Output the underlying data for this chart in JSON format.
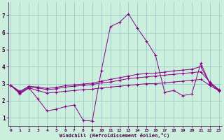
{
  "xlabel": "Windchill (Refroidissement éolien,°C)",
  "background_color": "#cceedd",
  "line_color": "#880088",
  "grid_color": "#99cccc",
  "x_ticks": [
    0,
    1,
    2,
    3,
    4,
    5,
    6,
    7,
    8,
    9,
    10,
    11,
    12,
    13,
    14,
    15,
    16,
    17,
    18,
    19,
    20,
    21,
    22,
    23
  ],
  "y_ticks": [
    1,
    2,
    3,
    4,
    5,
    6,
    7
  ],
  "xlim": [
    -0.3,
    23.3
  ],
  "ylim": [
    0.5,
    7.8
  ],
  "series": [
    {
      "x": [
        0,
        1,
        2,
        3,
        4,
        5,
        6,
        7,
        8,
        9,
        10,
        11,
        12,
        13,
        14,
        15,
        16,
        17,
        18,
        19,
        20,
        21,
        22,
        23
      ],
      "y": [
        2.9,
        2.4,
        2.75,
        2.1,
        1.4,
        1.5,
        1.65,
        1.75,
        0.85,
        0.8,
        3.75,
        6.35,
        6.6,
        7.1,
        6.25,
        5.5,
        4.65,
        2.5,
        2.6,
        2.3,
        2.4,
        4.2,
        3.0,
        2.6
      ]
    },
    {
      "x": [
        0,
        1,
        2,
        3,
        4,
        5,
        6,
        7,
        8,
        9,
        10,
        11,
        12,
        13,
        14,
        15,
        16,
        17,
        18,
        19,
        20,
        21,
        22,
        23
      ],
      "y": [
        2.9,
        2.5,
        2.8,
        2.75,
        2.65,
        2.7,
        2.8,
        2.85,
        2.9,
        2.95,
        3.05,
        3.1,
        3.2,
        3.3,
        3.35,
        3.4,
        3.45,
        3.5,
        3.55,
        3.6,
        3.65,
        3.7,
        3.1,
        2.65
      ]
    },
    {
      "x": [
        0,
        1,
        2,
        3,
        4,
        5,
        6,
        7,
        8,
        9,
        10,
        11,
        12,
        13,
        14,
        15,
        16,
        17,
        18,
        19,
        20,
        21,
        22,
        23
      ],
      "y": [
        2.9,
        2.55,
        2.85,
        2.8,
        2.72,
        2.78,
        2.88,
        2.93,
        2.98,
        3.03,
        3.15,
        3.25,
        3.35,
        3.45,
        3.55,
        3.6,
        3.62,
        3.68,
        3.75,
        3.8,
        3.85,
        4.0,
        3.02,
        2.62
      ]
    },
    {
      "x": [
        0,
        1,
        2,
        3,
        4,
        5,
        6,
        7,
        8,
        9,
        10,
        11,
        12,
        13,
        14,
        15,
        16,
        17,
        18,
        19,
        20,
        21,
        22,
        23
      ],
      "y": [
        2.9,
        2.45,
        2.75,
        2.6,
        2.45,
        2.5,
        2.55,
        2.6,
        2.65,
        2.68,
        2.75,
        2.8,
        2.85,
        2.9,
        2.95,
        3.0,
        3.0,
        3.05,
        3.1,
        3.15,
        3.2,
        3.25,
        2.9,
        2.58
      ]
    }
  ]
}
